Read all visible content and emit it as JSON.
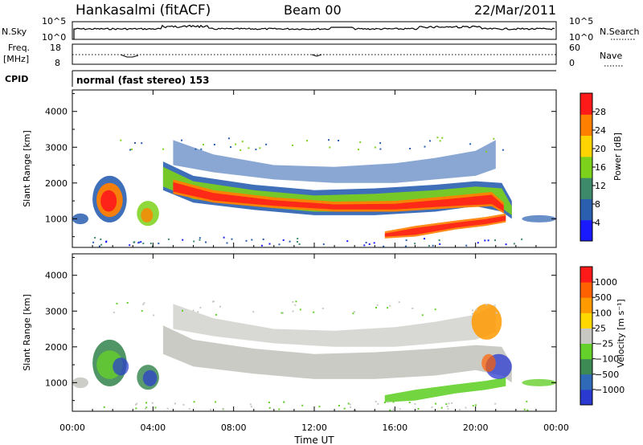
{
  "header": {
    "station": "Hankasalmi (fitACF)",
    "beam": "Beam 00",
    "date": "22/Mar/2011"
  },
  "noise_panel": {
    "left_label": "N.Sky",
    "left_ticks": [
      "10^5",
      "10^0"
    ],
    "right_ticks": [
      "10^5",
      "10^0"
    ],
    "right_label": "N.Search"
  },
  "freq_panel": {
    "left_label_line1": "Freq.",
    "left_label_line2": "[MHz]",
    "left_ticks": [
      "18",
      "8"
    ],
    "right_ticks": [
      "60",
      "0"
    ],
    "right_label": "Nave"
  },
  "cpid": {
    "label": "CPID",
    "value": "normal (fast stereo) 153"
  },
  "chart_data": [
    {
      "type": "heatmap",
      "title": "",
      "ylabel": "Slant Range [km]",
      "yticks": [
        "1000",
        "2000",
        "3000",
        "4000"
      ],
      "ylim": [
        200,
        4600
      ],
      "colorbar_label": "Power [dB]",
      "colorbar_ticks": [
        "4",
        "8",
        "12",
        "16",
        "20",
        "24",
        "28"
      ],
      "colorbar_colors": [
        "#1a1aff",
        "#2a5fb0",
        "#3d8a6a",
        "#7cd21a",
        "#ffd400",
        "#ff8000",
        "#ff1a1a"
      ]
    },
    {
      "type": "heatmap",
      "title": "",
      "xlabel": "Time UT",
      "xticks": [
        "00:00",
        "04:00",
        "08:00",
        "12:00",
        "16:00",
        "20:00",
        "00:00"
      ],
      "xlim_hours": [
        0,
        24
      ],
      "ylabel": "Slant Range [km]",
      "yticks": [
        "1000",
        "2000",
        "3000",
        "4000"
      ],
      "ylim": [
        200,
        4600
      ],
      "colorbar_label": "Velocity [m s⁻¹]",
      "colorbar_ticks": [
        "1000",
        "500",
        "100",
        "25",
        "−25",
        "−100",
        "−500",
        "−1000"
      ],
      "colorbar_colors": [
        "#2a3ad0",
        "#2f6ab8",
        "#3d8a55",
        "#64d02a",
        "#c8c8c2",
        "#ffd800",
        "#ff9a00",
        "#ff6000",
        "#ff1a1a"
      ]
    }
  ]
}
